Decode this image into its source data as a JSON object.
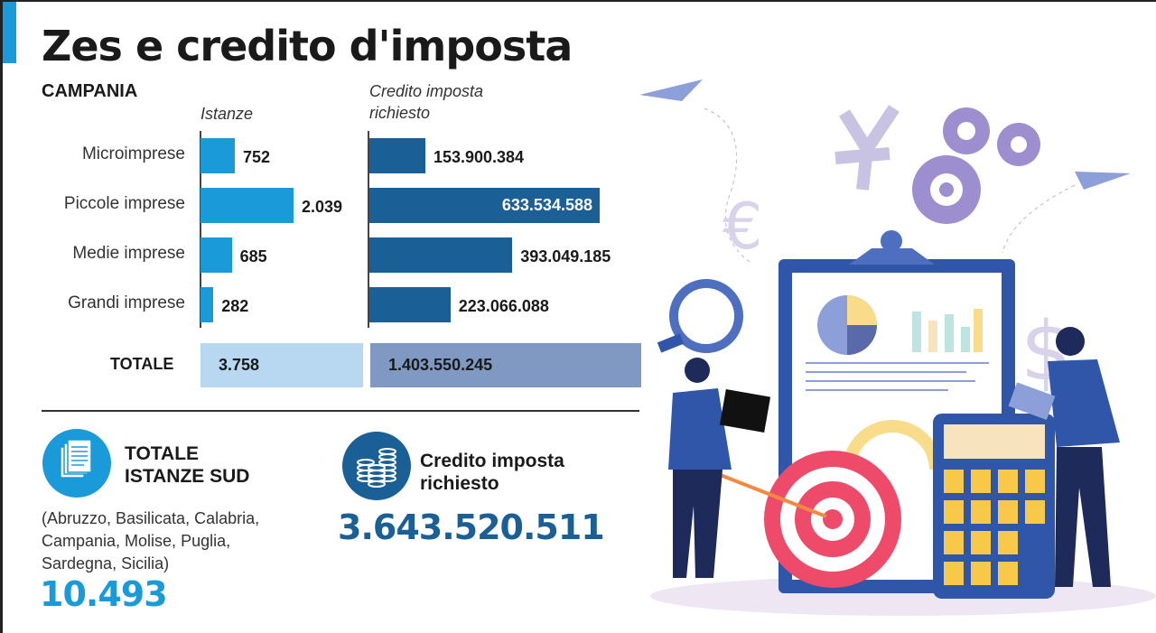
{
  "title": "Zes e credito d'imposta",
  "region": "CAMPANIA",
  "chart_data": {
    "type": "bar",
    "orientation": "horizontal",
    "categories": [
      "Microimprese",
      "Piccole imprese",
      "Medie imprese",
      "Grandi imprese"
    ],
    "series": [
      {
        "name": "Istanze",
        "values": [
          752,
          2039,
          685,
          282
        ],
        "labels": [
          "752",
          "2.039",
          "685",
          "282"
        ],
        "color": "#1a9ad8"
      },
      {
        "name": "Credito imposta richiesto",
        "values": [
          153900384,
          633534588,
          393049185,
          223066088
        ],
        "labels": [
          "153.900.384",
          "633.534.588",
          "393.049.185",
          "223.066.088"
        ],
        "color": "#1a5f96"
      }
    ],
    "series_headers": [
      "Istanze",
      "Credito imposta",
      "richiesto"
    ],
    "total": {
      "label": "TOTALE",
      "istanze": "3.758",
      "credito": "1.403.550.245"
    }
  },
  "summary": {
    "istanze_title": [
      "TOTALE",
      "ISTANZE SUD"
    ],
    "istanze_regions": [
      "(Abruzzo, Basilicata, Calabria,",
      "Campania, Molise, Puglia,",
      "Sardegna, Sicilia)"
    ],
    "istanze_value": "10.493",
    "credito_title": [
      "Credito imposta",
      "richiesto"
    ],
    "credito_value": "3.643.520.511"
  },
  "icons": {
    "documents": "documents-icon",
    "coins": "coins-icon"
  },
  "colors": {
    "light_blue": "#1a9ad8",
    "dark_blue": "#1a5f96",
    "total_light": "#b7d8f0",
    "total_dark": "#7f99c2"
  }
}
